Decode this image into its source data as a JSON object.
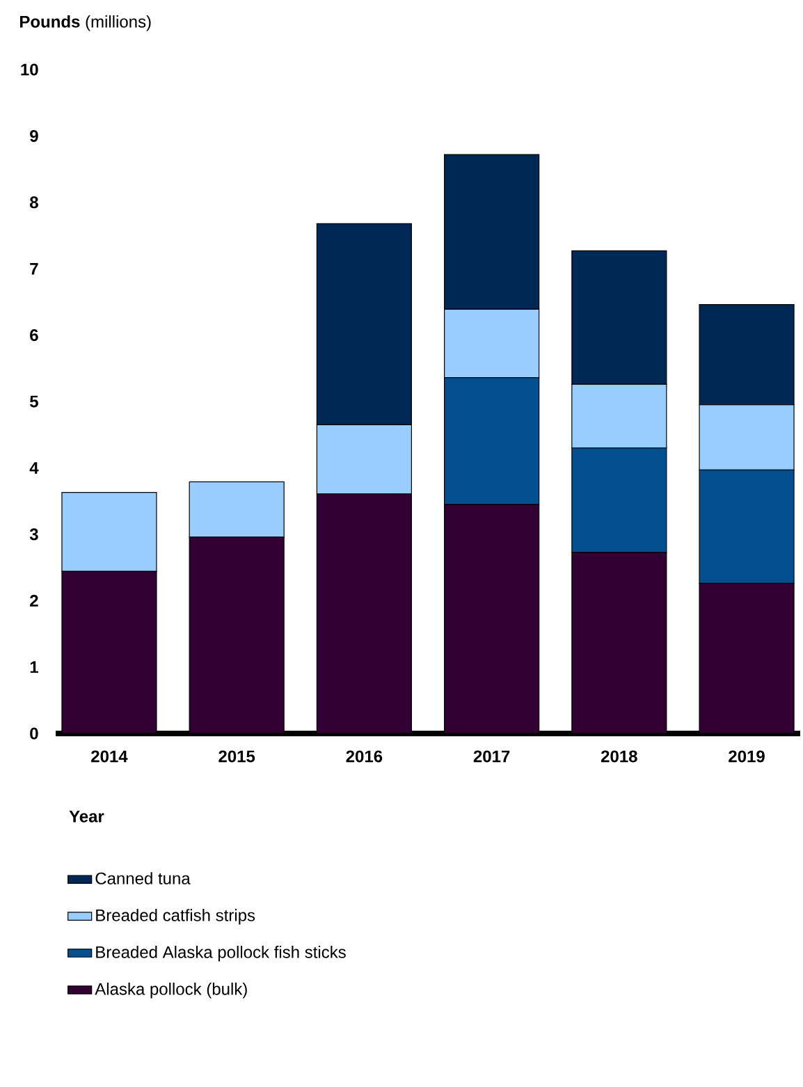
{
  "chart_data": {
    "type": "bar",
    "stacked": true,
    "ylabel": "**Pounds** (millions)",
    "xlabel": "Year",
    "categories": [
      "2014",
      "2015",
      "2016",
      "2017",
      "2018",
      "2019"
    ],
    "series": [
      {
        "name": "Alaska pollock (bulk)",
        "color": "#330033",
        "values": [
          2.44,
          2.96,
          3.61,
          3.45,
          2.73,
          2.26
        ]
      },
      {
        "name": "Breaded Alaska pollock fish sticks",
        "color": "#034f90",
        "values": [
          null,
          null,
          null,
          1.91,
          1.57,
          1.71
        ]
      },
      {
        "name": "Breaded catfish strips",
        "color": "#99ccff",
        "values": [
          1.19,
          0.83,
          1.04,
          1.03,
          0.96,
          0.98
        ]
      },
      {
        "name": "Canned tuna",
        "color": "#002855",
        "values": [
          null,
          null,
          3.03,
          2.33,
          2.01,
          1.51
        ]
      }
    ],
    "ylim": [
      0,
      10
    ],
    "yticks": [
      0,
      1,
      2,
      3,
      4,
      5,
      6,
      7,
      8,
      9,
      10
    ],
    "grid": false,
    "legend": "bottom"
  }
}
